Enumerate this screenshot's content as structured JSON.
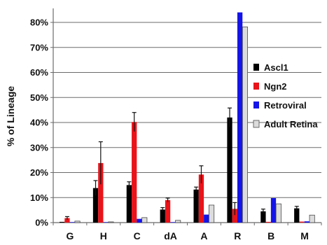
{
  "chart_data": {
    "type": "bar",
    "ylabel": "% of Lineage",
    "ylim": [
      0,
      80
    ],
    "yticks": [
      0,
      10,
      20,
      30,
      40,
      50,
      60,
      70,
      80
    ],
    "ytick_labels": [
      "0%",
      "10%",
      "20%",
      "30%",
      "40%",
      "50%",
      "60%",
      "70%",
      "80%"
    ],
    "grid": true,
    "legend_position": "right",
    "categories": [
      "G",
      "H",
      "C",
      "dA",
      "A",
      "R",
      "B",
      "M"
    ],
    "series": [
      {
        "name": "Ascl1",
        "color": "#000000",
        "values": [
          0.3,
          13.8,
          15.0,
          5.2,
          13.2,
          42.0,
          4.5,
          5.7
        ],
        "errors": [
          0,
          3.0,
          1.3,
          0.8,
          1.0,
          3.8,
          0.9,
          0.8
        ]
      },
      {
        "name": "Ngn2",
        "color": "#e8141a",
        "values": [
          1.8,
          23.8,
          40.2,
          9.0,
          19.2,
          5.5,
          0.3,
          0.4
        ],
        "errors": [
          0.6,
          8.5,
          3.8,
          0.8,
          3.5,
          2.5,
          0,
          0
        ]
      },
      {
        "name": "Retroviral",
        "color": "#1414e8",
        "values": [
          0.2,
          0.2,
          1.5,
          0.2,
          3.2,
          84.0,
          9.8,
          0.5
        ],
        "errors": [
          0,
          0,
          0,
          0,
          0,
          0,
          0,
          0
        ]
      },
      {
        "name": "Adult Retina",
        "color": "#dcdcdc",
        "values": [
          0.6,
          0.3,
          2.0,
          0.9,
          7.0,
          78.2,
          7.5,
          3.0
        ],
        "errors": [
          0,
          0,
          0,
          0,
          0,
          0,
          0,
          0
        ]
      }
    ]
  }
}
